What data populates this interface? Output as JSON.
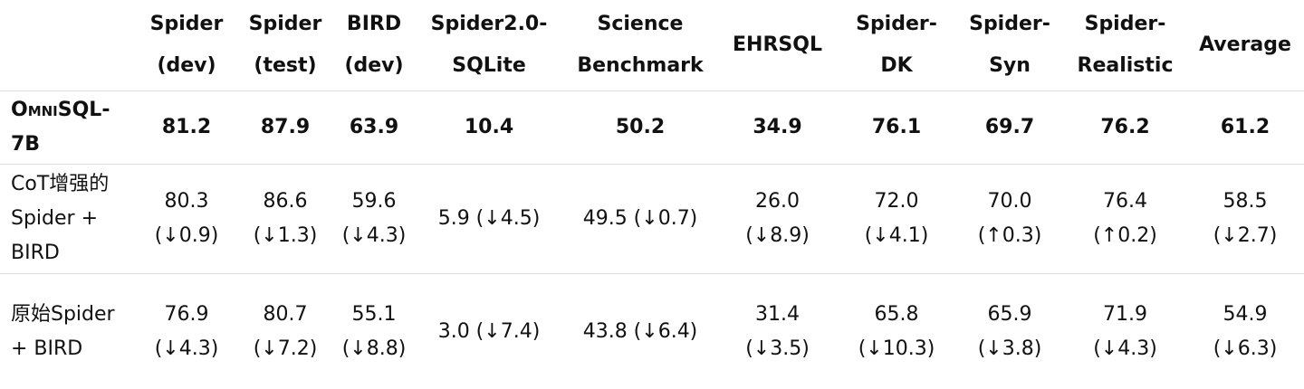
{
  "table": {
    "header": [
      "Spider (dev)",
      "Spider (test)",
      "BIRD (dev)",
      "Spider2.0-SQLite",
      "Science Benchmark",
      "EHRSQL",
      "Spider-DK",
      "Spider-Syn",
      "Spider-Realistic",
      "Average"
    ],
    "rows": [
      {
        "label": "OmniSQL-7B",
        "cells": [
          81.2,
          87.9,
          63.9,
          10.4,
          50.2,
          34.9,
          76.1,
          69.7,
          76.2,
          61.2
        ]
      },
      {
        "label": "CoT增强的Spider + BIRD",
        "cells": [
          "80.3 (↓0.9)",
          "86.6 (↓1.3)",
          "59.6 (↓4.3)",
          "5.9 (↓4.5)",
          "49.5 (↓0.7)",
          "26.0 (↓8.9)",
          "72.0 (↓4.1)",
          "70.0 (↑0.3)",
          "76.4 (↑0.2)",
          "58.5 (↓2.7)"
        ]
      },
      {
        "label": "原始Spider + BIRD",
        "cells": [
          "76.9 (↓4.3)",
          "80.7 (↓7.2)",
          "55.1 (↓8.8)",
          "3.0 (↓7.4)",
          "43.8 (↓6.4)",
          "31.4 (↓3.5)",
          "65.8 (↓10.3)",
          "65.9 (↓3.8)",
          "71.9 (↓4.3)",
          "54.9 (↓6.3)"
        ]
      }
    ]
  }
}
